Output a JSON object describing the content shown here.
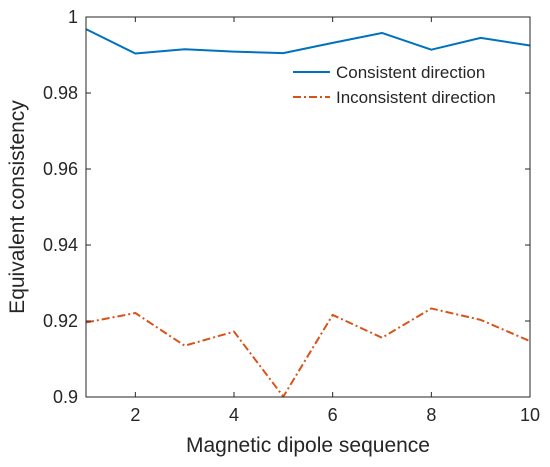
{
  "chart_data": {
    "type": "line",
    "title": "",
    "xlabel": "Magnetic dipole sequence",
    "ylabel": "Equivalent consistency",
    "xlim": [
      1,
      10
    ],
    "ylim": [
      0.9,
      1.0
    ],
    "x_ticks": [
      2,
      4,
      6,
      8,
      10
    ],
    "x_tick_labels": [
      "2",
      "4",
      "6",
      "8",
      "10"
    ],
    "y_ticks": [
      0.9,
      0.92,
      0.94,
      0.96,
      0.98,
      1.0
    ],
    "y_tick_labels": [
      "0.9",
      "0.92",
      "0.94",
      "0.96",
      "0.98",
      "1"
    ],
    "grid": false,
    "legend_position": "top-right",
    "x": [
      1,
      2,
      3,
      4,
      5,
      6,
      7,
      8,
      9,
      10
    ],
    "series": [
      {
        "name": "Consistent direction",
        "color": "#0072BD",
        "line_style": "solid",
        "values": [
          0.9968,
          0.9904,
          0.9915,
          0.9909,
          0.9905,
          0.9932,
          0.9958,
          0.9914,
          0.9945,
          0.9925
        ]
      },
      {
        "name": "Inconsistent direction",
        "color": "#D95319",
        "line_style": "dash-dot",
        "values": [
          0.9196,
          0.9221,
          0.9135,
          0.9172,
          0.9001,
          0.9216,
          0.9156,
          0.9233,
          0.9203,
          0.9147
        ]
      }
    ]
  }
}
